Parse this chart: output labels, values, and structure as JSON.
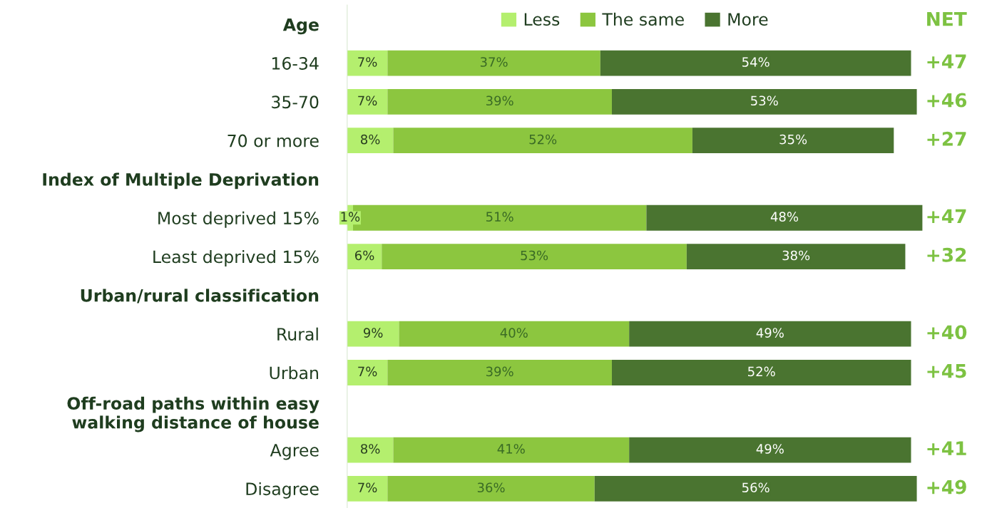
{
  "chart_data": {
    "type": "bar",
    "orientation": "horizontal",
    "stacked": true,
    "categories": [
      "Age",
      "16-34",
      "35-70",
      "70 or more",
      "Index of Multiple Deprivation",
      "Most deprived 15%",
      "Least deprived 15%",
      "Urban/rural classification",
      "Rural",
      "Urban",
      "Off-road paths within easy\nwalking distance of house",
      "Agree",
      "Disagree"
    ],
    "series": [
      {
        "name": "Less",
        "color": "#b4ef6e",
        "values": [
          null,
          7,
          7,
          8,
          null,
          1,
          6,
          null,
          9,
          7,
          null,
          8,
          7
        ],
        "value_labels": [
          null,
          "7%",
          "7%",
          "8%",
          null,
          "1%",
          "6%",
          null,
          "9%",
          "7%",
          null,
          "8%",
          "7%"
        ]
      },
      {
        "name": "The same",
        "color": "#8cc63f",
        "values": [
          null,
          37,
          39,
          52,
          null,
          51,
          53,
          null,
          40,
          39,
          null,
          41,
          36
        ],
        "value_labels": [
          null,
          "37%",
          "39%",
          "52%",
          null,
          "51%",
          "53%",
          null,
          "40%",
          "39%",
          null,
          "41%",
          "36%"
        ]
      },
      {
        "name": "More",
        "color": "#4a7430",
        "values": [
          null,
          54,
          53,
          35,
          null,
          48,
          38,
          null,
          49,
          52,
          null,
          49,
          56
        ],
        "value_labels": [
          null,
          "54%",
          "53%",
          "35%",
          null,
          "48%",
          "38%",
          null,
          "49%",
          "52%",
          null,
          "49%",
          "56%"
        ]
      }
    ],
    "annotations": [
      "NET",
      "+47",
      "+46",
      "+27",
      "+47",
      "+32",
      "+40",
      "+45",
      "+41",
      "+49"
    ],
    "legend": "top",
    "grid": false,
    "tick_labels": "y"
  }
}
